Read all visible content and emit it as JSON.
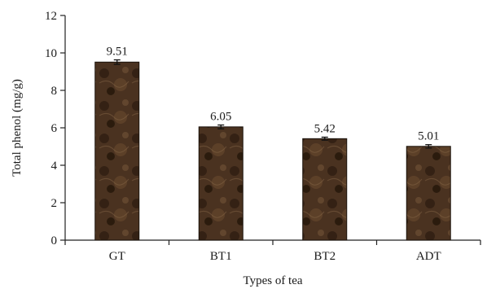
{
  "chart_data": {
    "type": "bar",
    "title": "",
    "xlabel": "Types of tea",
    "ylabel": "Total phenol (mg/g)",
    "categories": [
      "GT",
      "BT1",
      "BT2",
      "ADT"
    ],
    "values": [
      9.51,
      6.05,
      5.42,
      5.01
    ],
    "data_labels": [
      "9.51",
      "6.05",
      "5.42",
      "5.01"
    ],
    "error": [
      0.12,
      0.1,
      0.08,
      0.09
    ],
    "ylim": [
      0,
      12
    ],
    "yticks": [
      0,
      2,
      4,
      6,
      8,
      10,
      12
    ],
    "grid": false,
    "legend": "none",
    "bar_color": "#4a3220",
    "bar_edge_color": "#1a120b"
  }
}
